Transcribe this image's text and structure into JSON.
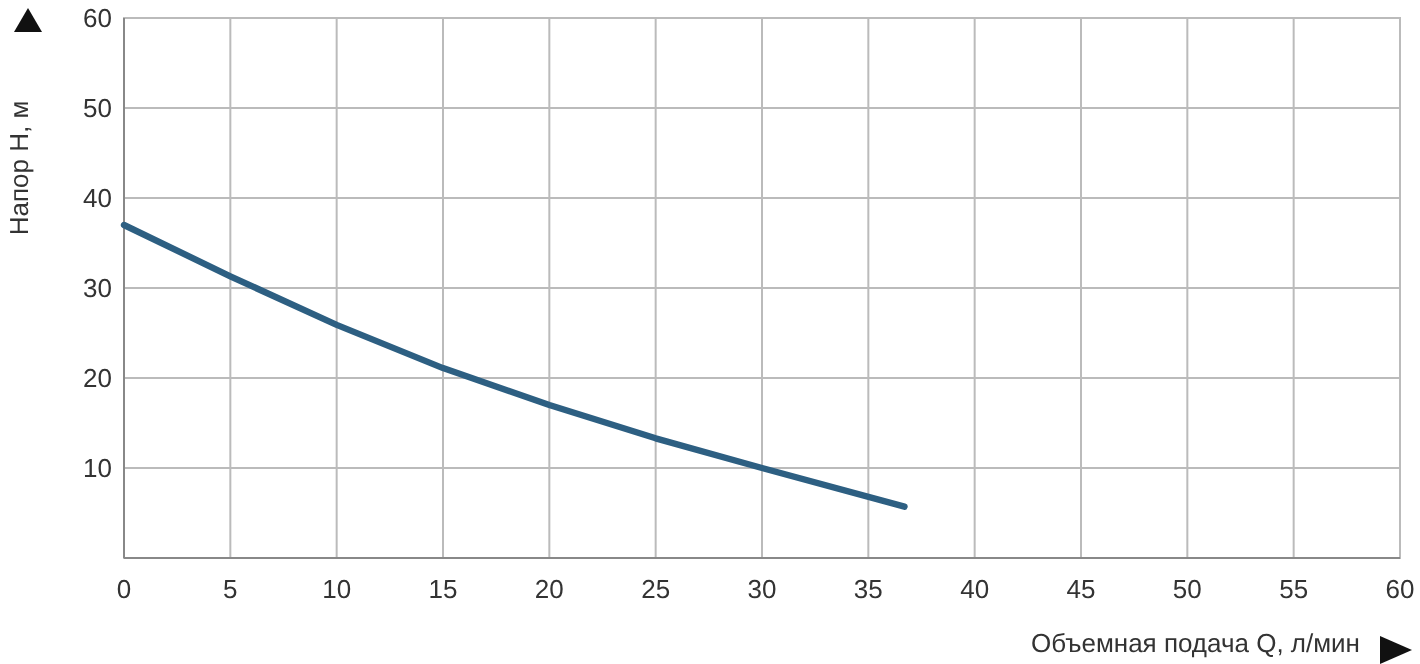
{
  "chart_data": {
    "type": "line",
    "xlabel": "Объемная подача Q, л/мин",
    "ylabel": "Напор H, м",
    "x": [
      0,
      5,
      10,
      15,
      20,
      25,
      30,
      36.7
    ],
    "series": [
      {
        "color": "#2d5f82",
        "values": [
          37,
          31.3,
          25.9,
          21.1,
          17,
          13.3,
          10,
          5.7
        ]
      }
    ],
    "xlim": [
      0,
      60
    ],
    "xticks": [
      0,
      5,
      10,
      15,
      20,
      25,
      30,
      35,
      40,
      45,
      50,
      55,
      60
    ],
    "ylim": [
      0,
      60
    ],
    "yticks": [
      {
        "value": 0,
        "label": null
      },
      10,
      20,
      30,
      40,
      50,
      60
    ],
    "grid": true,
    "marker": "none",
    "line_style": "solid"
  }
}
